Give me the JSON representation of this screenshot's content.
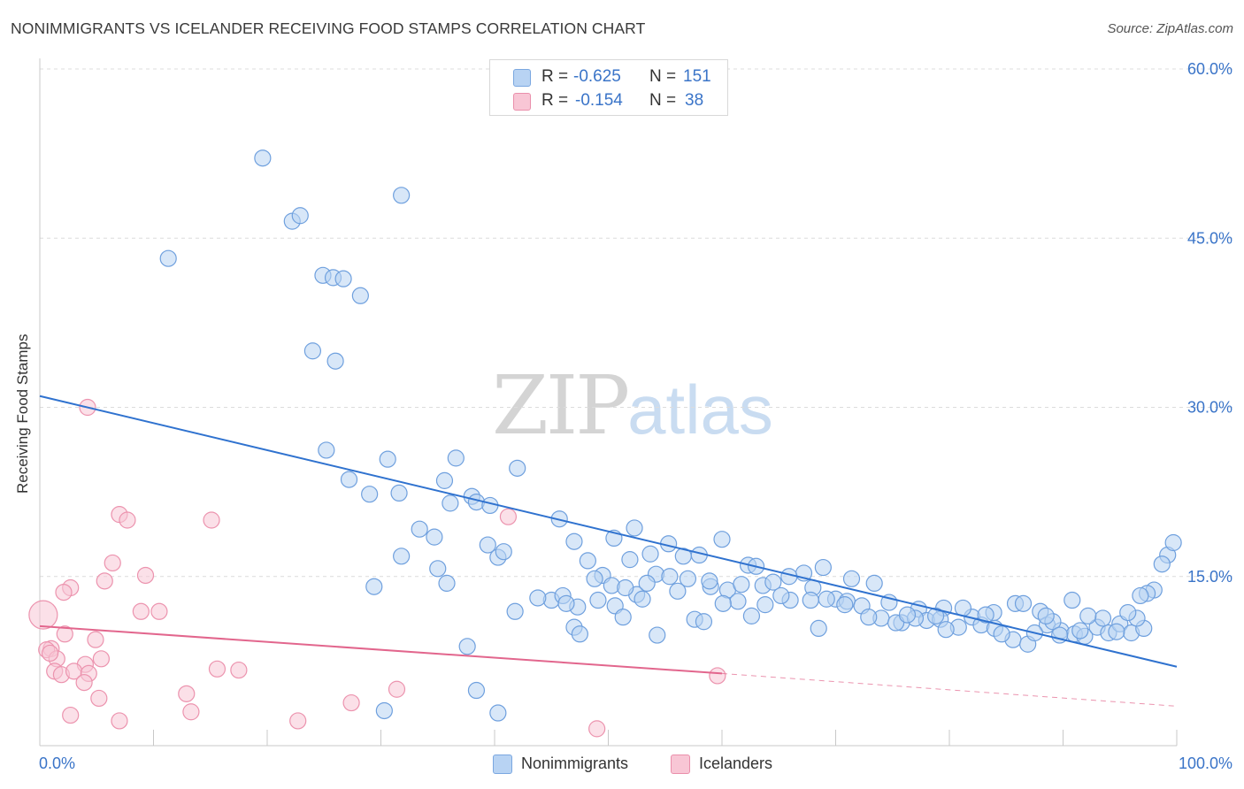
{
  "title": "NONIMMIGRANTS VS ICELANDER RECEIVING FOOD STAMPS CORRELATION CHART",
  "source": "Source: ZipAtlas.com",
  "watermark": {
    "zip": "ZIP",
    "atlas": "atlas"
  },
  "legend": {
    "rows": [
      {
        "r_label": "R =",
        "r_value": "-0.625",
        "n_label": "N =",
        "n_value": "151",
        "color": "#b8d3f3",
        "border": "#7aa7e0"
      },
      {
        "r_label": "R =",
        "r_value": "-0.154",
        "n_label": "N =",
        "n_value": "38",
        "color": "#f8c6d5",
        "border": "#ea8fab"
      }
    ]
  },
  "bottom_legend": [
    {
      "label": "Nonimmigrants",
      "color": "#b8d3f3",
      "border": "#7aa7e0"
    },
    {
      "label": "Icelanders",
      "color": "#f8c6d5",
      "border": "#ea8fab"
    }
  ],
  "chart_data": {
    "type": "scatter",
    "title": "NONIMMIGRANTS VS ICELANDER RECEIVING FOOD STAMPS CORRELATION CHART",
    "xlabel": "",
    "ylabel": "Receiving Food Stamps",
    "xlim": [
      0,
      100
    ],
    "ylim": [
      0,
      63
    ],
    "x_tick_labels": [
      "0.0%",
      "100.0%"
    ],
    "y_ticks": [
      15,
      30,
      45,
      60
    ],
    "y_tick_labels": [
      "15.0%",
      "30.0%",
      "45.0%",
      "60.0%"
    ],
    "grid": "horizontal dashed",
    "legend_position": "top-center",
    "series": [
      {
        "name": "Nonimmigrants",
        "color": "#6fa0de",
        "fill": "#b8d3f3",
        "trend": {
          "x": [
            0,
            100
          ],
          "y": [
            31.0,
            7.0
          ]
        },
        "points": [
          [
            19.6,
            52.1
          ],
          [
            31.8,
            48.8
          ],
          [
            22.2,
            46.5
          ],
          [
            22.9,
            47.0
          ],
          [
            11.3,
            43.2
          ],
          [
            24.9,
            41.7
          ],
          [
            25.8,
            41.5
          ],
          [
            26.7,
            41.4
          ],
          [
            28.2,
            39.9
          ],
          [
            24.0,
            35.0
          ],
          [
            26.0,
            34.1
          ],
          [
            25.2,
            26.2
          ],
          [
            30.6,
            25.4
          ],
          [
            36.6,
            25.5
          ],
          [
            42.0,
            24.6
          ],
          [
            27.2,
            23.6
          ],
          [
            29.0,
            22.3
          ],
          [
            31.6,
            22.4
          ],
          [
            35.6,
            23.5
          ],
          [
            38.0,
            22.1
          ],
          [
            36.1,
            21.5
          ],
          [
            38.4,
            21.6
          ],
          [
            39.6,
            21.3
          ],
          [
            45.7,
            20.1
          ],
          [
            33.4,
            19.2
          ],
          [
            34.7,
            18.5
          ],
          [
            39.4,
            17.8
          ],
          [
            47.0,
            18.1
          ],
          [
            52.3,
            19.3
          ],
          [
            50.5,
            18.4
          ],
          [
            55.3,
            17.9
          ],
          [
            60.0,
            18.3
          ],
          [
            31.8,
            16.8
          ],
          [
            35.0,
            15.7
          ],
          [
            40.3,
            16.7
          ],
          [
            40.8,
            17.2
          ],
          [
            48.2,
            16.4
          ],
          [
            51.9,
            16.5
          ],
          [
            53.7,
            17.0
          ],
          [
            56.6,
            16.8
          ],
          [
            58.0,
            16.9
          ],
          [
            62.3,
            16.0
          ],
          [
            63.0,
            15.9
          ],
          [
            67.2,
            15.3
          ],
          [
            68.9,
            15.8
          ],
          [
            38.4,
            4.9
          ],
          [
            35.8,
            14.4
          ],
          [
            41.8,
            11.9
          ],
          [
            29.4,
            14.1
          ],
          [
            49.5,
            15.1
          ],
          [
            50.3,
            14.2
          ],
          [
            52.5,
            13.4
          ],
          [
            54.2,
            15.2
          ],
          [
            55.4,
            15.0
          ],
          [
            57.0,
            14.8
          ],
          [
            59.0,
            14.1
          ],
          [
            60.5,
            13.8
          ],
          [
            61.7,
            14.3
          ],
          [
            63.6,
            14.2
          ],
          [
            64.5,
            14.5
          ],
          [
            65.9,
            15.0
          ],
          [
            68.0,
            14.0
          ],
          [
            70.0,
            13.0
          ],
          [
            71.4,
            14.8
          ],
          [
            73.4,
            14.4
          ],
          [
            74.7,
            12.7
          ],
          [
            77.3,
            12.1
          ],
          [
            79.5,
            12.2
          ],
          [
            82.0,
            11.4
          ],
          [
            83.9,
            11.8
          ],
          [
            85.8,
            12.6
          ],
          [
            88.0,
            11.9
          ],
          [
            45.0,
            12.9
          ],
          [
            46.0,
            13.3
          ],
          [
            47.3,
            12.3
          ],
          [
            49.1,
            12.9
          ],
          [
            50.6,
            12.4
          ],
          [
            51.3,
            11.4
          ],
          [
            53.0,
            13.0
          ],
          [
            57.6,
            11.2
          ],
          [
            61.4,
            12.8
          ],
          [
            63.8,
            12.5
          ],
          [
            66.0,
            12.9
          ],
          [
            67.8,
            12.9
          ],
          [
            69.2,
            13.0
          ],
          [
            71.0,
            12.8
          ],
          [
            72.3,
            12.4
          ],
          [
            74.0,
            11.3
          ],
          [
            75.8,
            10.9
          ],
          [
            78.0,
            11.1
          ],
          [
            79.2,
            11.2
          ],
          [
            80.8,
            10.5
          ],
          [
            82.8,
            10.7
          ],
          [
            84.0,
            10.4
          ],
          [
            85.6,
            9.4
          ],
          [
            86.9,
            9.0
          ],
          [
            88.6,
            10.7
          ],
          [
            89.8,
            10.2
          ],
          [
            91.0,
            9.9
          ],
          [
            91.9,
            9.7
          ],
          [
            93.0,
            10.5
          ],
          [
            94.0,
            10.0
          ],
          [
            95.0,
            10.8
          ],
          [
            96.0,
            10.0
          ],
          [
            97.1,
            10.4
          ],
          [
            47.0,
            10.5
          ],
          [
            47.5,
            9.9
          ],
          [
            54.3,
            9.8
          ],
          [
            68.5,
            10.4
          ],
          [
            75.3,
            10.9
          ],
          [
            77.0,
            11.3
          ],
          [
            79.7,
            10.3
          ],
          [
            84.6,
            9.9
          ],
          [
            87.5,
            10.0
          ],
          [
            89.1,
            11.0
          ],
          [
            89.7,
            9.8
          ],
          [
            91.5,
            10.2
          ],
          [
            94.7,
            10.1
          ],
          [
            96.5,
            11.3
          ],
          [
            98.0,
            13.8
          ],
          [
            99.2,
            16.9
          ],
          [
            99.7,
            18.0
          ],
          [
            98.7,
            16.1
          ],
          [
            97.4,
            13.5
          ],
          [
            96.8,
            13.3
          ],
          [
            95.7,
            11.8
          ],
          [
            93.5,
            11.3
          ],
          [
            92.2,
            11.5
          ],
          [
            90.8,
            12.9
          ],
          [
            88.5,
            11.5
          ],
          [
            86.5,
            12.6
          ],
          [
            83.2,
            11.6
          ],
          [
            81.2,
            12.2
          ],
          [
            78.8,
            11.5
          ],
          [
            76.3,
            11.6
          ],
          [
            72.9,
            11.4
          ],
          [
            70.8,
            12.5
          ],
          [
            65.2,
            13.3
          ],
          [
            62.6,
            11.5
          ],
          [
            60.1,
            12.6
          ],
          [
            58.4,
            11.0
          ],
          [
            56.1,
            13.7
          ],
          [
            53.4,
            14.4
          ],
          [
            51.5,
            14.0
          ],
          [
            48.8,
            14.8
          ],
          [
            46.3,
            12.6
          ],
          [
            43.8,
            13.1
          ],
          [
            37.6,
            8.8
          ],
          [
            30.3,
            3.1
          ],
          [
            40.3,
            2.9
          ],
          [
            58.9,
            14.6
          ]
        ]
      },
      {
        "name": "Icelanders",
        "color": "#ec93ae",
        "fill": "#f8c6d5",
        "trend": {
          "x": [
            0,
            60
          ],
          "y": [
            10.6,
            6.4
          ],
          "dashed_to": {
            "x": 100,
            "y": 3.5
          }
        },
        "points": [
          [
            0.3,
            11.6
          ],
          [
            4.2,
            30.0
          ],
          [
            7.0,
            20.5
          ],
          [
            7.7,
            20.0
          ],
          [
            15.1,
            20.0
          ],
          [
            6.4,
            16.2
          ],
          [
            9.3,
            15.1
          ],
          [
            5.7,
            14.6
          ],
          [
            2.7,
            14.0
          ],
          [
            2.1,
            13.6
          ],
          [
            8.9,
            11.9
          ],
          [
            10.5,
            11.9
          ],
          [
            2.2,
            9.9
          ],
          [
            4.9,
            9.4
          ],
          [
            1.0,
            8.6
          ],
          [
            0.6,
            8.5
          ],
          [
            1.5,
            7.7
          ],
          [
            5.4,
            7.7
          ],
          [
            4.0,
            7.2
          ],
          [
            1.3,
            6.6
          ],
          [
            1.9,
            6.3
          ],
          [
            3.0,
            6.6
          ],
          [
            4.3,
            6.4
          ],
          [
            15.6,
            6.8
          ],
          [
            17.5,
            6.7
          ],
          [
            3.9,
            5.6
          ],
          [
            12.9,
            4.6
          ],
          [
            5.2,
            4.2
          ],
          [
            31.4,
            5.0
          ],
          [
            27.4,
            3.8
          ],
          [
            2.7,
            2.7
          ],
          [
            7.0,
            2.2
          ],
          [
            13.3,
            3.0
          ],
          [
            22.7,
            2.2
          ],
          [
            41.2,
            20.3
          ],
          [
            49.0,
            1.5
          ],
          [
            59.6,
            6.2
          ],
          [
            0.9,
            8.2
          ]
        ]
      }
    ]
  }
}
